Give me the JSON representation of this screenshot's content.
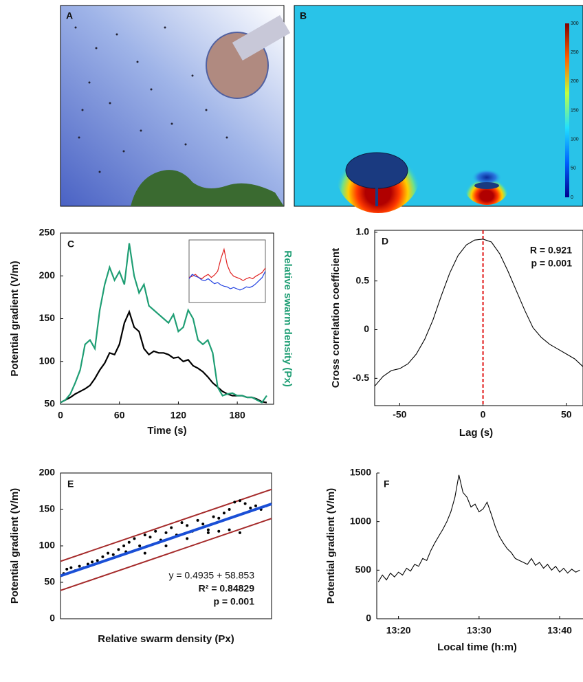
{
  "images": [
    {
      "label": "A"
    },
    {
      "label": "B",
      "colorbar_lim": [
        0,
        300
      ],
      "colorbar_ticks": [
        0,
        50,
        100,
        150,
        200,
        250,
        300
      ]
    }
  ],
  "chart_data": [
    {
      "type": "line",
      "label": "C",
      "xlabel": "Time (s)",
      "ylabel": "Potential gradient (V/m)",
      "y2label": "Relative swarm density (Px)",
      "xlim": [
        0,
        217
      ],
      "xticks": [
        0,
        60,
        120,
        180
      ],
      "ylim": [
        50,
        250
      ],
      "yticks": [
        50,
        100,
        150,
        200,
        250
      ],
      "y2lim": [
        50,
        250
      ],
      "box": true,
      "x": [
        0,
        5,
        10,
        15,
        20,
        25,
        30,
        35,
        40,
        45,
        50,
        55,
        60,
        65,
        70,
        75,
        80,
        85,
        90,
        95,
        100,
        105,
        110,
        115,
        120,
        125,
        130,
        135,
        140,
        145,
        150,
        155,
        160,
        165,
        170,
        175,
        180,
        185,
        190,
        195,
        200,
        205,
        210
      ],
      "series": [
        {
          "color": "#000000",
          "values": [
            52,
            55,
            58,
            62,
            65,
            68,
            72,
            80,
            90,
            98,
            110,
            108,
            120,
            145,
            158,
            140,
            135,
            115,
            108,
            112,
            110,
            110,
            108,
            104,
            105,
            100,
            102,
            95,
            92,
            88,
            82,
            75,
            70,
            65,
            62,
            60,
            60,
            60,
            58,
            58,
            56,
            53,
            52
          ]
        },
        {
          "color": "#1f9e74",
          "axis": "y2",
          "values": [
            52,
            55,
            62,
            75,
            90,
            120,
            125,
            115,
            160,
            190,
            210,
            195,
            205,
            190,
            238,
            200,
            180,
            190,
            165,
            160,
            155,
            150,
            145,
            155,
            135,
            140,
            160,
            150,
            125,
            120,
            125,
            110,
            70,
            60,
            62,
            63,
            60,
            60,
            58,
            58,
            55,
            52,
            60
          ]
        }
      ],
      "inset": {
        "ylim": [
          0,
          100
        ],
        "series": [
          {
            "color": "#e02020",
            "values": [
              40,
              42,
              45,
              40,
              38,
              42,
              45,
              40,
              44,
              50,
              70,
              85,
              60,
              48,
              42,
              40,
              38,
              35,
              38,
              40,
              38,
              42,
              45,
              48,
              55
            ]
          },
          {
            "color": "#2040e0",
            "values": [
              38,
              45,
              42,
              40,
              36,
              35,
              38,
              34,
              30,
              32,
              28,
              26,
              25,
              22,
              24,
              22,
              20,
              22,
              25,
              24,
              26,
              30,
              35,
              40,
              50
            ]
          }
        ]
      }
    },
    {
      "type": "line",
      "label": "D",
      "xlabel": "Lag (s)",
      "ylabel": "Cross correlation coefficient",
      "xlim": [
        -65,
        60
      ],
      "xticks": [
        -50,
        0,
        50
      ],
      "ylim": [
        -0.78,
        1.02
      ],
      "yticks": [
        -0.5,
        0,
        0.5,
        {
          "value": 1,
          "label": "1.0"
        }
      ],
      "box": true,
      "vline": 0,
      "vline_color": "#e01010",
      "annotations": [
        "R = 0.921",
        "p = 0.001"
      ],
      "x": [
        -65,
        -60,
        -55,
        -50,
        -45,
        -40,
        -35,
        -30,
        -25,
        -20,
        -15,
        -10,
        -5,
        0,
        5,
        10,
        15,
        20,
        25,
        30,
        35,
        40,
        45,
        50,
        55,
        60
      ],
      "series": [
        {
          "color": "#000000",
          "values": [
            -0.58,
            -0.48,
            -0.42,
            -0.4,
            -0.35,
            -0.25,
            -0.1,
            0.1,
            0.35,
            0.58,
            0.76,
            0.87,
            0.92,
            0.93,
            0.9,
            0.78,
            0.6,
            0.4,
            0.2,
            0.02,
            -0.08,
            -0.15,
            -0.2,
            -0.25,
            -0.3,
            -0.38
          ]
        }
      ]
    },
    {
      "type": "scatter",
      "label": "E",
      "xlabel": "Relative swarm density (Px)",
      "ylabel": "Potential gradient (V/m)",
      "xlim": [
        0,
        200
      ],
      "ylim": [
        0,
        200
      ],
      "yticks": [
        0,
        50,
        100,
        150,
        200
      ],
      "box": true,
      "color": "#000000",
      "fit": {
        "slope": 0.4935,
        "intercept": 58.853,
        "color": "#1a4fd6"
      },
      "bands": {
        "offset": 20,
        "color": "#a52a2a"
      },
      "annotations": [
        "y = 0.4935 + 58.853",
        "R² = 0.84829",
        "p = 0.001"
      ],
      "x": [
        3,
        6,
        10,
        14,
        18,
        22,
        26,
        30,
        35,
        40,
        45,
        50,
        55,
        60,
        62,
        65,
        70,
        75,
        80,
        85,
        90,
        95,
        100,
        105,
        110,
        115,
        120,
        125,
        130,
        135,
        140,
        145,
        150,
        155,
        160,
        165,
        170,
        175,
        180,
        185,
        190,
        195,
        80,
        100,
        120,
        140,
        150,
        160,
        170
      ],
      "values": [
        62,
        68,
        70,
        66,
        72,
        70,
        75,
        78,
        80,
        85,
        90,
        88,
        95,
        100,
        92,
        105,
        110,
        100,
        115,
        112,
        120,
        108,
        118,
        125,
        115,
        132,
        128,
        120,
        135,
        130,
        122,
        140,
        138,
        145,
        150,
        160,
        162,
        158,
        152,
        155,
        150,
        155,
        90,
        100,
        110,
        118,
        120,
        122,
        118
      ]
    },
    {
      "type": "line",
      "label": "F",
      "xlabel": "Local time (h:m)",
      "ylabel": "Potential gradient (V/m)",
      "xlim": [
        797.3,
        822.9
      ],
      "xticks": [
        {
          "value": 800,
          "label": "13:20"
        },
        {
          "value": 810,
          "label": "13:30"
        },
        {
          "value": 820,
          "label": "13:40"
        }
      ],
      "ylim": [
        0,
        1500
      ],
      "yticks": [
        0,
        500,
        1000,
        1500
      ],
      "box": false,
      "x": [
        797.5,
        798,
        798.5,
        799,
        799.5,
        800,
        800.5,
        801,
        801.5,
        802,
        802.5,
        803,
        803.5,
        804,
        804.5,
        805,
        805.5,
        806,
        806.5,
        807,
        807.5,
        808,
        808.5,
        809,
        809.5,
        810,
        810.5,
        811,
        811.5,
        812,
        812.5,
        813,
        813.5,
        814,
        814.5,
        815,
        815.5,
        816,
        816.5,
        817,
        817.5,
        818,
        818.5,
        819,
        819.5,
        820,
        820.5,
        821,
        821.5,
        822,
        822.5
      ],
      "series": [
        {
          "color": "#000000",
          "values": [
            380,
            450,
            400,
            470,
            430,
            480,
            450,
            520,
            490,
            560,
            540,
            620,
            600,
            700,
            780,
            850,
            920,
            1000,
            1100,
            1250,
            1480,
            1300,
            1250,
            1150,
            1180,
            1100,
            1130,
            1200,
            1080,
            950,
            850,
            780,
            720,
            680,
            620,
            600,
            580,
            560,
            620,
            550,
            580,
            520,
            560,
            500,
            540,
            480,
            520,
            470,
            510,
            480,
            500
          ]
        }
      ]
    }
  ]
}
